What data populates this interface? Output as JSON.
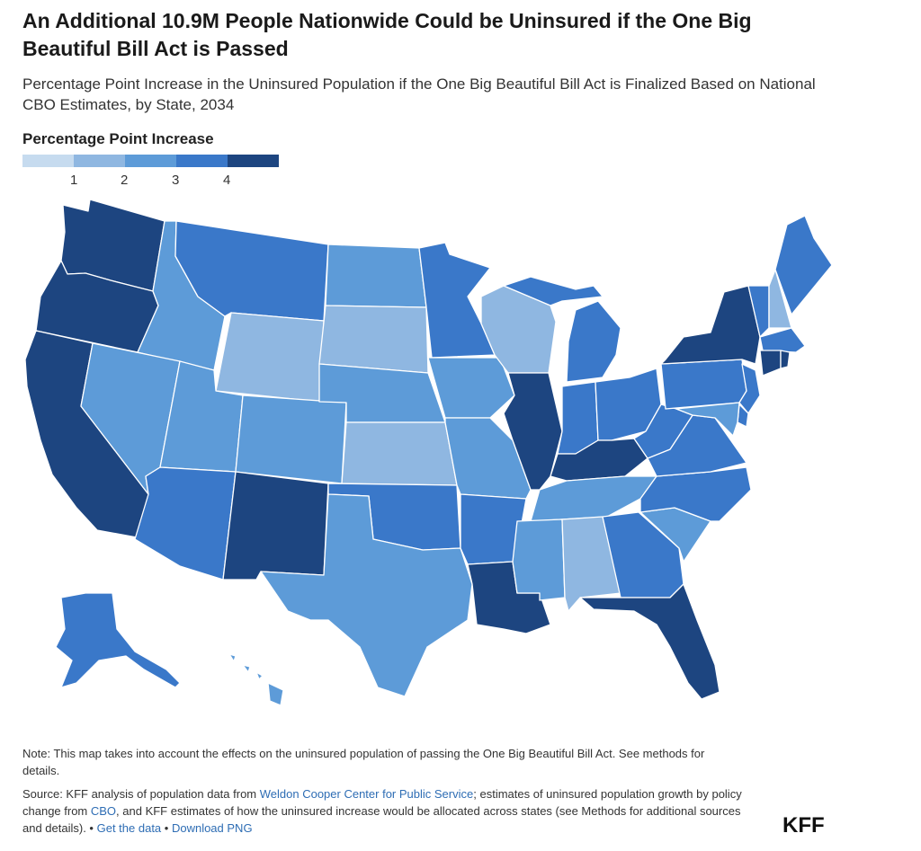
{
  "title": "An Additional 10.9M People Nationwide Could be Uninsured if the One Big Beautiful Bill Act is Passed",
  "subtitle": "Percentage Point Increase in the Uninsured Population if the One Big Beautiful Bill Act is Finalized Based on National CBO Estimates, by State, 2034",
  "legend": {
    "title": "Percentage Point Increase",
    "ticks": [
      "1",
      "2",
      "3",
      "4"
    ],
    "colors": [
      "#c6dbef",
      "#8fb7e1",
      "#5d9bd8",
      "#3a78c9",
      "#1d4580"
    ]
  },
  "note": "Note: This map takes into account the effects on the uninsured population of passing the One Big Beautiful Bill Act. See methods for details.",
  "source": {
    "prefix": "Source: KFF analysis of population data from ",
    "link1": "Weldon Cooper Center for Public Service",
    "mid1": "; estimates of uninsured population growth by policy change from ",
    "link2": "CBO",
    "mid2": ", and KFF estimates of how the uninsured increase would be allocated across states (see Methods for additional sources and details). • ",
    "link3": "Get the data",
    "sep": " • ",
    "link4": "Download PNG"
  },
  "logo": "KFF"
}
